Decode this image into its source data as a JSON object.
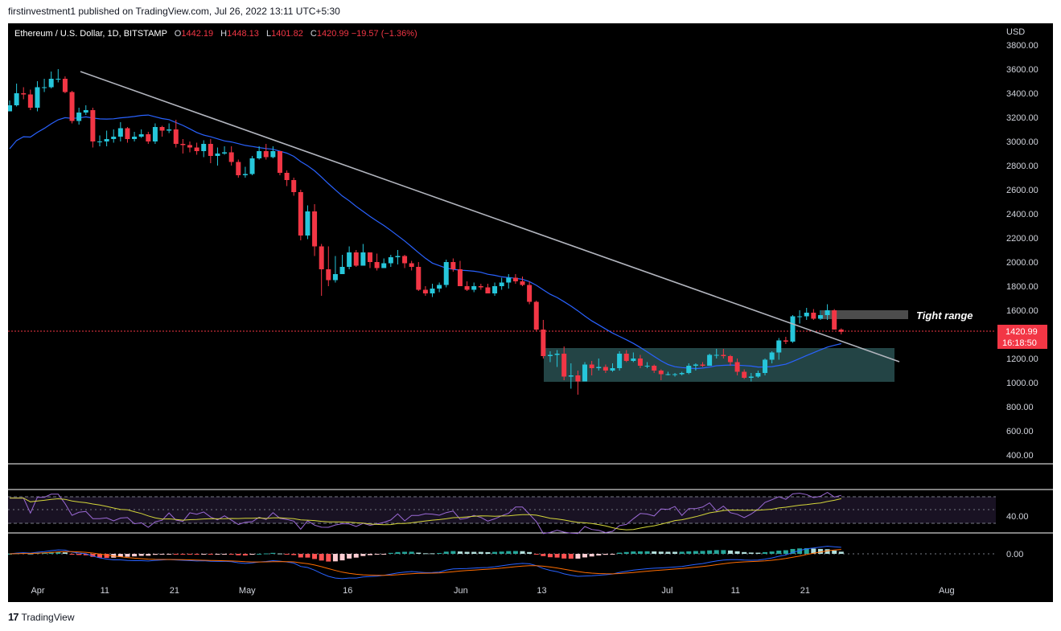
{
  "header": {
    "text": "firstinvestment1 published on TradingView.com, Jul 26, 2022 13:11 UTC+5:30"
  },
  "symbol": {
    "name": "Ethereum / U.S. Dollar, 1D, BITSTAMP",
    "o_key": "O",
    "o_val": "1442.19",
    "h_key": "H",
    "h_val": "1448.13",
    "l_key": "L",
    "l_val": "1401.82",
    "c_key": "C",
    "c_val": "1420.99",
    "change": "−19.57 (−1.36%)"
  },
  "price_axis": {
    "currency": "USD",
    "ticks": [
      "3800.00",
      "3600.00",
      "3400.00",
      "3200.00",
      "3000.00",
      "2800.00",
      "2600.00",
      "2400.00",
      "2200.00",
      "2000.00",
      "1800.00",
      "1600.00",
      "1400.00",
      "1200.00",
      "1000.00",
      "800.00",
      "600.00",
      "400.00"
    ],
    "tick_values": [
      3800,
      3600,
      3400,
      3200,
      3000,
      2800,
      2600,
      2400,
      2200,
      2000,
      1800,
      1600,
      1400,
      1200,
      1000,
      800,
      600,
      400
    ],
    "last_price": "1420.99",
    "countdown": "16:18:50"
  },
  "rsi_axis": {
    "label": "40.00"
  },
  "macd_axis": {
    "label": "0.00"
  },
  "time_axis": [
    "Apr",
    "11",
    "21",
    "May",
    "16",
    "Jun",
    "13",
    "Jul",
    "11",
    "21",
    "Aug"
  ],
  "annotation": {
    "tight_range": "Tight range"
  },
  "footer": {
    "brand": "TradingView",
    "logo": "17"
  },
  "colors": {
    "up": "#26c6da",
    "down": "#f23645",
    "ma": "#2962ff",
    "trend": "#b2b5be",
    "rsi": "#9c6ad6",
    "rsi_ma": "#d4d63a"
  },
  "chart_data": {
    "type": "candlestick",
    "title": "Ethereum / U.S. Dollar, 1D, BITSTAMP",
    "ylabel": "USD",
    "ylim": [
      400,
      3800
    ],
    "x": [
      "Mar 28",
      "Mar 29",
      "Mar 30",
      "Mar 31",
      "Apr 1",
      "Apr 2",
      "Apr 3",
      "Apr 4",
      "Apr 5",
      "Apr 6",
      "Apr 7",
      "Apr 8",
      "Apr 9",
      "Apr 10",
      "Apr 11",
      "Apr 12",
      "Apr 13",
      "Apr 14",
      "Apr 15",
      "Apr 16",
      "Apr 17",
      "Apr 18",
      "Apr 19",
      "Apr 20",
      "Apr 21",
      "Apr 22",
      "Apr 23",
      "Apr 24",
      "Apr 25",
      "Apr 26",
      "Apr 27",
      "Apr 28",
      "Apr 29",
      "Apr 30",
      "May 1",
      "May 2",
      "May 3",
      "May 4",
      "May 5",
      "May 6",
      "May 7",
      "May 8",
      "May 9",
      "May 10",
      "May 11",
      "May 12",
      "May 13",
      "May 14",
      "May 15",
      "May 16",
      "May 17",
      "May 18",
      "May 19",
      "May 20",
      "May 21",
      "May 22",
      "May 23",
      "May 24",
      "May 25",
      "May 26",
      "May 27",
      "May 28",
      "May 29",
      "May 30",
      "May 31",
      "Jun 1",
      "Jun 2",
      "Jun 3",
      "Jun 4",
      "Jun 5",
      "Jun 6",
      "Jun 7",
      "Jun 8",
      "Jun 9",
      "Jun 10",
      "Jun 11",
      "Jun 12",
      "Jun 13",
      "Jun 14",
      "Jun 15",
      "Jun 16",
      "Jun 17",
      "Jun 18",
      "Jun 19",
      "Jun 20",
      "Jun 21",
      "Jun 22",
      "Jun 23",
      "Jun 24",
      "Jun 25",
      "Jun 26",
      "Jun 27",
      "Jun 28",
      "Jun 29",
      "Jun 30",
      "Jul 1",
      "Jul 2",
      "Jul 3",
      "Jul 4",
      "Jul 5",
      "Jul 6",
      "Jul 7",
      "Jul 8",
      "Jul 9",
      "Jul 10",
      "Jul 11",
      "Jul 12",
      "Jul 13",
      "Jul 14",
      "Jul 15",
      "Jul 16",
      "Jul 17",
      "Jul 18",
      "Jul 19",
      "Jul 20",
      "Jul 21",
      "Jul 22",
      "Jul 23",
      "Jul 24",
      "Jul 25",
      "Jul 26"
    ],
    "close": [
      3300,
      3400,
      3390,
      3280,
      3450,
      3450,
      3520,
      3520,
      3410,
      3170,
      3240,
      3260,
      3000,
      3000,
      3020,
      3040,
      3110,
      3020,
      3040,
      3060,
      3000,
      3120,
      3090,
      3100,
      2980,
      2970,
      2950,
      2920,
      2980,
      2880,
      2900,
      2910,
      2830,
      2720,
      2730,
      2860,
      2920,
      2870,
      2920,
      2740,
      2680,
      2580,
      2220,
      2420,
      2130,
      1940,
      1850,
      1900,
      1960,
      2080,
      1970,
      2080,
      2000,
      1950,
      1990,
      2040,
      2050,
      1990,
      1960,
      1770,
      1740,
      1780,
      1810,
      2000,
      1940,
      1800,
      1770,
      1800,
      1790,
      1740,
      1800,
      1830,
      1870,
      1840,
      1810,
      1670,
      1440,
      1220,
      1230,
      1240,
      1050,
      1060,
      1010,
      1150,
      1120,
      1130,
      1100,
      1120,
      1240,
      1180,
      1200,
      1140,
      1140,
      1100,
      1070,
      1070,
      1070,
      1080,
      1140,
      1150,
      1140,
      1230,
      1230,
      1220,
      1170,
      1090,
      1040,
      1050,
      1080,
      1190,
      1250,
      1350,
      1340,
      1550,
      1550,
      1580,
      1530,
      1560,
      1600,
      1440,
      1420.99
    ],
    "high": [
      3340,
      3480,
      3450,
      3430,
      3500,
      3520,
      3580,
      3600,
      3540,
      3420,
      3280,
      3300,
      3280,
      3050,
      3090,
      3100,
      3160,
      3120,
      3080,
      3100,
      3080,
      3150,
      3130,
      3150,
      3180,
      3020,
      3000,
      2990,
      3010,
      3020,
      2950,
      2960,
      2960,
      2850,
      2790,
      2880,
      2960,
      2980,
      2960,
      2920,
      2760,
      2700,
      2600,
      2470,
      2480,
      2150,
      2130,
      2050,
      2060,
      2130,
      2100,
      2150,
      2080,
      2070,
      2030,
      2060,
      2100,
      2060,
      2010,
      2000,
      1800,
      1820,
      1830,
      2020,
      2030,
      2010,
      1840,
      1830,
      1820,
      1820,
      1830,
      1870,
      1900,
      1900,
      1880,
      1840,
      1680,
      1520,
      1260,
      1270,
      1300,
      1160,
      1100,
      1170,
      1180,
      1200,
      1150,
      1160,
      1260,
      1270,
      1250,
      1230,
      1170,
      1150,
      1110,
      1090,
      1080,
      1090,
      1160,
      1160,
      1170,
      1240,
      1280,
      1280,
      1230,
      1200,
      1110,
      1080,
      1100,
      1200,
      1260,
      1370,
      1380,
      1560,
      1600,
      1620,
      1610,
      1600,
      1650,
      1610,
      1450
    ],
    "low": [
      3280,
      3290,
      3350,
      3260,
      3250,
      3410,
      3440,
      3490,
      3400,
      3150,
      3140,
      3220,
      2950,
      2960,
      2960,
      2990,
      3000,
      2990,
      3000,
      3030,
      2980,
      2980,
      3040,
      3070,
      2950,
      2900,
      2910,
      2890,
      2870,
      2820,
      2800,
      2890,
      2800,
      2700,
      2700,
      2720,
      2850,
      2850,
      2860,
      2720,
      2630,
      2550,
      2180,
      2190,
      2050,
      1720,
      1800,
      1830,
      1900,
      1940,
      1960,
      1990,
      1950,
      1930,
      1950,
      1960,
      1980,
      1950,
      1930,
      1760,
      1720,
      1710,
      1750,
      1790,
      1920,
      1800,
      1760,
      1750,
      1770,
      1740,
      1720,
      1770,
      1780,
      1820,
      1800,
      1650,
      1430,
      1200,
      1170,
      1130,
      1020,
      950,
      900,
      1030,
      1060,
      1100,
      1080,
      1090,
      1100,
      1170,
      1170,
      1120,
      1120,
      1080,
      1020,
      1060,
      1050,
      1060,
      1070,
      1100,
      1130,
      1140,
      1200,
      1200,
      1140,
      1060,
      1030,
      1010,
      1040,
      1060,
      1160,
      1190,
      1320,
      1330,
      1490,
      1520,
      1520,
      1520,
      1520,
      1440,
      1400
    ]
  }
}
